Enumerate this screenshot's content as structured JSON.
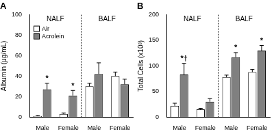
{
  "chart_data": [
    {
      "type": "bar",
      "title": "A",
      "categories": [
        "Male",
        "Female",
        "Male",
        "Female"
      ],
      "group_labels": [
        "NALF",
        "BALF"
      ],
      "y_label": "Albumin (μg/mL)",
      "ylim": [
        0,
        100
      ],
      "yticks": [
        0,
        20,
        40,
        60,
        80,
        100
      ],
      "grid": false,
      "legend": "top-left",
      "series": [
        {
          "name": "Air",
          "color": "#ffffff",
          "values": [
            1,
            3,
            30,
            40
          ],
          "errors": [
            0.7,
            1,
            3,
            4
          ],
          "annotations": [
            null,
            null,
            null,
            null
          ]
        },
        {
          "name": "Acrolein",
          "color": "#808080",
          "values": [
            27,
            21,
            42,
            32
          ],
          "errors": [
            6,
            5,
            11,
            5
          ],
          "annotations": [
            "*",
            "*",
            null,
            null
          ]
        }
      ]
    },
    {
      "type": "bar",
      "title": "B",
      "categories": [
        "Male",
        "Female",
        "Male",
        "Female"
      ],
      "group_labels": [
        "NALF",
        "BALF"
      ],
      "y_label": "Total Cells (x10³)",
      "ylim": [
        0,
        200
      ],
      "yticks": [
        0,
        50,
        100,
        150,
        200
      ],
      "grid": false,
      "legend": false,
      "series": [
        {
          "color": "#ffffff",
          "values": [
            22,
            15,
            78,
            88
          ],
          "errors": [
            5,
            2,
            4,
            5
          ],
          "annotations": [
            null,
            null,
            null,
            null
          ]
        },
        {
          "color": "#808080",
          "values": [
            83,
            30,
            117,
            130
          ],
          "errors": [
            22,
            6,
            9,
            10
          ],
          "annotations": [
            "*†",
            null,
            "*",
            "*"
          ]
        }
      ]
    }
  ]
}
